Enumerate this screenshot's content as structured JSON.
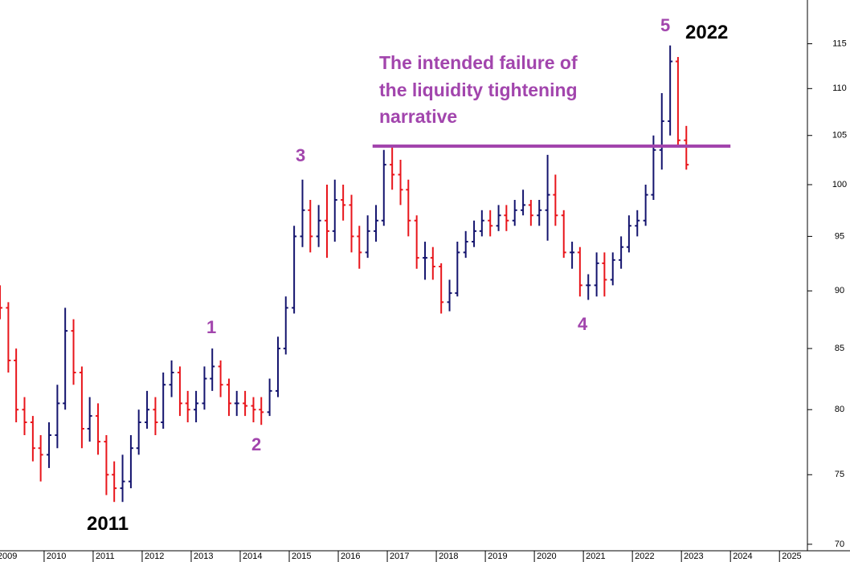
{
  "chart_data": {
    "type": "ohlc",
    "log_scale": true,
    "up_color": "#14146e",
    "down_color": "#e8151b",
    "line_color": "#a245ad",
    "xlim": [
      2009.1,
      2025.57
    ],
    "xticks": [
      2009,
      2010,
      2011,
      2012,
      2013,
      2014,
      2015,
      2016,
      2017,
      2018,
      2019,
      2020,
      2021,
      2022,
      2023,
      2024,
      2025
    ],
    "ylim": [
      69.55,
      120.1
    ],
    "yticks": [
      70,
      75,
      80,
      85,
      90,
      95,
      100,
      105,
      110,
      115
    ],
    "hline": {
      "value": 103.9,
      "x": [
        2016.7,
        2024.0
      ]
    },
    "annotation_lines": [
      "The intended failure of",
      "the liquidity tightening",
      "narrative"
    ],
    "wave_labels": [
      "1",
      "2",
      "3",
      "4",
      "5"
    ],
    "year_labels": [
      "2011",
      "2022"
    ],
    "x": [
      2009.1,
      2009.27,
      2009.43,
      2009.6,
      2009.77,
      2009.93,
      2010.1,
      2010.27,
      2010.43,
      2010.6,
      2010.77,
      2010.93,
      2011.1,
      2011.27,
      2011.43,
      2011.6,
      2011.77,
      2011.93,
      2012.1,
      2012.27,
      2012.43,
      2012.6,
      2012.77,
      2012.93,
      2013.1,
      2013.27,
      2013.43,
      2013.6,
      2013.77,
      2013.93,
      2014.1,
      2014.27,
      2014.43,
      2014.6,
      2014.77,
      2014.93,
      2015.1,
      2015.27,
      2015.43,
      2015.6,
      2015.77,
      2015.93,
      2016.1,
      2016.27,
      2016.43,
      2016.6,
      2016.77,
      2016.93,
      2017.1,
      2017.27,
      2017.43,
      2017.6,
      2017.77,
      2017.93,
      2018.1,
      2018.27,
      2018.43,
      2018.6,
      2018.77,
      2018.93,
      2019.1,
      2019.27,
      2019.43,
      2019.6,
      2019.77,
      2019.93,
      2020.1,
      2020.27,
      2020.43,
      2020.6,
      2020.77,
      2020.93,
      2021.1,
      2021.27,
      2021.43,
      2021.6,
      2021.77,
      2021.93,
      2022.1,
      2022.27,
      2022.43,
      2022.6,
      2022.77,
      2022.93,
      2023.1
    ],
    "open": [
      89.5,
      88.5,
      84,
      80,
      79,
      77,
      76.5,
      78,
      80.5,
      86.5,
      83,
      78.5,
      79.5,
      77.5,
      75,
      74,
      74.5,
      77,
      79,
      80,
      79,
      82,
      83,
      80.5,
      80,
      80.5,
      82.5,
      83.5,
      82,
      80.5,
      80.5,
      80.3,
      80,
      79.8,
      81.5,
      85,
      88.5,
      95,
      97.5,
      95,
      96.5,
      95.5,
      98.5,
      98,
      95,
      93.5,
      95.5,
      96.5,
      102,
      101,
      99.5,
      96.5,
      93,
      93,
      92.2,
      89,
      89.8,
      93.5,
      94.5,
      95.5,
      96.5,
      96,
      97,
      96.5,
      97.5,
      98,
      97,
      97.5,
      99,
      97,
      93.5,
      93.5,
      90.5,
      90.5,
      92.5,
      91,
      92.8,
      94,
      96,
      96.5,
      99,
      103.5,
      106.5,
      113,
      104.5
    ],
    "high": [
      90.5,
      89,
      85,
      81,
      79.5,
      78,
      79,
      82,
      88.5,
      87.5,
      83.5,
      81,
      80.5,
      78,
      76,
      76.5,
      78,
      80,
      81.5,
      81,
      83,
      84,
      83.5,
      81.5,
      81.5,
      83.5,
      85,
      84,
      82.5,
      81.5,
      81.5,
      81,
      81,
      82.5,
      86,
      89.5,
      96,
      100.5,
      98.5,
      98,
      100,
      100.5,
      100,
      99,
      96,
      97,
      98,
      103.5,
      104,
      102.5,
      100.5,
      97,
      94.5,
      94,
      92.5,
      91,
      94.5,
      95.5,
      96.5,
      97.5,
      97.5,
      98,
      98,
      98.5,
      99.5,
      98.5,
      98.5,
      103,
      101,
      97.5,
      94.5,
      94,
      91.5,
      93.5,
      93.5,
      93.5,
      95,
      97,
      97.5,
      100,
      105,
      109.5,
      114.8,
      113.5,
      106
    ],
    "low": [
      87.5,
      83,
      79,
      78,
      76,
      74.5,
      75.5,
      77,
      80,
      82,
      77,
      77.5,
      76.5,
      73.5,
      73,
      73,
      74,
      76.5,
      78.5,
      78,
      78.5,
      81,
      79.5,
      79,
      79,
      80,
      81.5,
      81,
      79.5,
      79.5,
      79.5,
      79,
      78.8,
      79.5,
      81,
      84.5,
      88,
      94,
      93.5,
      94,
      93,
      94.5,
      96.5,
      93.5,
      92,
      93,
      94.5,
      96,
      99.5,
      98,
      95,
      92,
      91,
      91,
      88,
      88.2,
      89.5,
      93,
      94,
      95,
      95,
      95.5,
      95.5,
      96,
      97,
      96,
      96,
      94.6,
      96,
      93,
      92,
      89.5,
      89.2,
      89.5,
      89.5,
      90.5,
      92,
      93.5,
      95,
      96,
      98.5,
      101.5,
      105,
      104,
      101.5
    ],
    "close": [
      88.5,
      84,
      80,
      79,
      77,
      76.5,
      78,
      80.5,
      86.5,
      83,
      78.5,
      79.5,
      77.5,
      75,
      74,
      74.5,
      77,
      79,
      80,
      79,
      82,
      83,
      80.5,
      80,
      80.5,
      82.5,
      83.5,
      82,
      80.5,
      80.5,
      80.3,
      80,
      79.8,
      81.5,
      85,
      88.5,
      95,
      97.5,
      95,
      96.5,
      95.5,
      98.5,
      98,
      95,
      93.5,
      95.5,
      96.5,
      102,
      101,
      99.5,
      96.5,
      93,
      93,
      92.2,
      89,
      89.8,
      93.5,
      94.5,
      95.5,
      96.5,
      96,
      97,
      96.5,
      97.5,
      98,
      97,
      97.5,
      99,
      97,
      93.5,
      93.5,
      90.5,
      90.5,
      92.5,
      91,
      92.8,
      94,
      96,
      96.5,
      99,
      103.5,
      106.5,
      113,
      104.5,
      102
    ]
  }
}
